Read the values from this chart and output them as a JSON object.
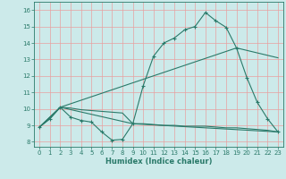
{
  "xlabel": "Humidex (Indice chaleur)",
  "background_color": "#cceaea",
  "grid_color": "#e8a0a0",
  "line_color": "#2a7a6a",
  "xlim": [
    -0.5,
    23.5
  ],
  "ylim": [
    7.7,
    16.5
  ],
  "xticks": [
    0,
    1,
    2,
    3,
    4,
    5,
    6,
    7,
    8,
    9,
    10,
    11,
    12,
    13,
    14,
    15,
    16,
    17,
    18,
    19,
    20,
    21,
    22,
    23
  ],
  "yticks": [
    8,
    9,
    10,
    11,
    12,
    13,
    14,
    15,
    16
  ],
  "line1_x": [
    0,
    1,
    2,
    3,
    4,
    5,
    6,
    7,
    8,
    9,
    10,
    11,
    12,
    13,
    14,
    15,
    16,
    17,
    18,
    19,
    20,
    21,
    22,
    23
  ],
  "line1_y": [
    8.9,
    9.4,
    10.1,
    9.5,
    9.3,
    9.2,
    8.6,
    8.1,
    8.15,
    9.1,
    11.4,
    13.2,
    14.0,
    14.3,
    14.8,
    15.0,
    15.85,
    15.35,
    14.95,
    13.7,
    11.9,
    10.4,
    9.4,
    8.6
  ],
  "line2_x": [
    0,
    2,
    19,
    23
  ],
  "line2_y": [
    8.9,
    10.1,
    13.7,
    13.1
  ],
  "line3_x": [
    0,
    2,
    9,
    23
  ],
  "line3_y": [
    8.9,
    10.1,
    9.1,
    8.6
  ],
  "line4_x": [
    0,
    1,
    2,
    3,
    4,
    5,
    6,
    7,
    8,
    9,
    10,
    11,
    12,
    13,
    14,
    15,
    16,
    17,
    18,
    19,
    20,
    21,
    22,
    23
  ],
  "line4_y": [
    8.9,
    9.4,
    10.1,
    10.05,
    9.95,
    9.9,
    9.85,
    9.8,
    9.75,
    9.1,
    9.1,
    9.05,
    9.0,
    9.0,
    8.95,
    8.95,
    8.95,
    8.9,
    8.85,
    8.85,
    8.8,
    8.75,
    8.7,
    8.6
  ]
}
